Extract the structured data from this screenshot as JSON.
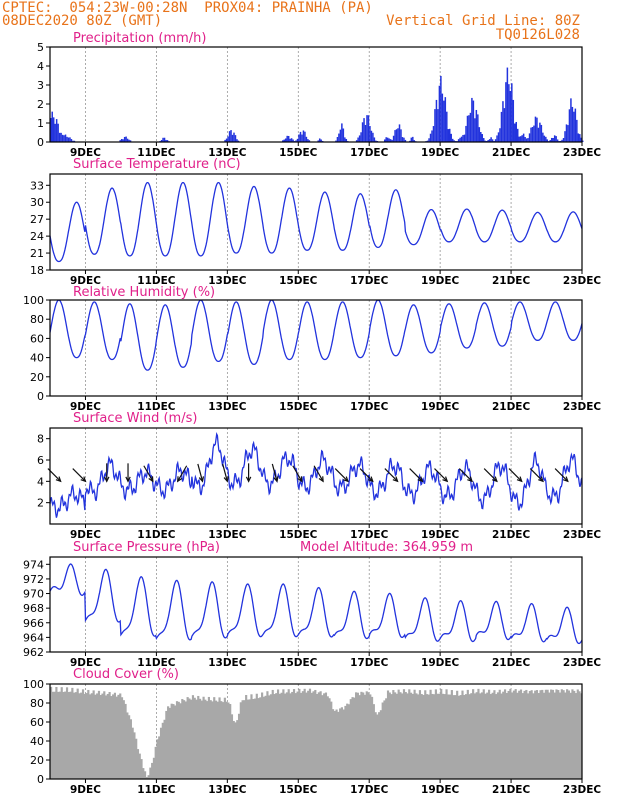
{
  "header": {
    "line1": "CPTEC:  054:23W-00:28N  PROX04: PRAINHA (PA)",
    "line2": "08DEC2020 80Z (GMT)",
    "grid_note": "Vertical Grid Line: 80Z",
    "model": "TQ0126L028"
  },
  "colors": {
    "header": "#e8731a",
    "title": "#e0208a",
    "series": "#2233dd",
    "bars": "#2233dd",
    "cloud": "#a8a8a8",
    "grid": "#888888"
  },
  "x_ticks": [
    "9DEC",
    "11DEC",
    "13DEC",
    "15DEC",
    "17DEC",
    "19DEC",
    "21DEC",
    "23DEC"
  ],
  "chart_data": [
    {
      "type": "bar",
      "title": "Precipitation (mm/h)",
      "ylim": [
        0,
        5
      ],
      "yticks": [
        "0",
        "1",
        "2",
        "3",
        "4",
        "5"
      ],
      "xlim_days": [
        0,
        15
      ],
      "events": [
        {
          "day": 0.05,
          "amp": 1.6,
          "w": 0.35
        },
        {
          "day": 0.4,
          "amp": 0.4,
          "w": 0.3
        },
        {
          "day": 2.1,
          "amp": 0.3,
          "w": 0.2
        },
        {
          "day": 3.2,
          "amp": 0.25,
          "w": 0.15
        },
        {
          "day": 5.1,
          "amp": 0.7,
          "w": 0.2
        },
        {
          "day": 6.7,
          "amp": 0.35,
          "w": 0.2
        },
        {
          "day": 7.1,
          "amp": 0.7,
          "w": 0.2
        },
        {
          "day": 7.6,
          "amp": 0.2,
          "w": 0.1
        },
        {
          "day": 8.2,
          "amp": 1.0,
          "w": 0.15
        },
        {
          "day": 8.9,
          "amp": 1.6,
          "w": 0.25
        },
        {
          "day": 9.5,
          "amp": 0.3,
          "w": 0.15
        },
        {
          "day": 9.8,
          "amp": 1.0,
          "w": 0.2
        },
        {
          "day": 10.2,
          "amp": 0.3,
          "w": 0.1
        },
        {
          "day": 11.0,
          "amp": 3.5,
          "w": 0.3
        },
        {
          "day": 11.6,
          "amp": 0.4,
          "w": 0.15
        },
        {
          "day": 11.9,
          "amp": 2.4,
          "w": 0.3
        },
        {
          "day": 12.4,
          "amp": 0.3,
          "w": 0.1
        },
        {
          "day": 12.9,
          "amp": 4.0,
          "w": 0.3
        },
        {
          "day": 13.3,
          "amp": 0.5,
          "w": 0.15
        },
        {
          "day": 13.7,
          "amp": 1.4,
          "w": 0.3
        },
        {
          "day": 14.2,
          "amp": 0.4,
          "w": 0.15
        },
        {
          "day": 14.7,
          "amp": 2.4,
          "w": 0.25
        }
      ]
    },
    {
      "type": "line",
      "title": "Surface Temperature (nC)",
      "ylim": [
        18,
        35
      ],
      "yticks": [
        "18",
        "21",
        "24",
        "27",
        "30",
        "33"
      ],
      "xlim_days": [
        0,
        15
      ],
      "daily_max": [
        30,
        32.5,
        33.5,
        33.5,
        33.5,
        32.8,
        32.5,
        31.8,
        31.5,
        32.2,
        28.7,
        28.8,
        28.6,
        28.2,
        28.3,
        29
      ],
      "daily_min": [
        19.5,
        20.8,
        20.5,
        20.5,
        20.5,
        21,
        21,
        21.5,
        21.5,
        22,
        22.5,
        23,
        23,
        23,
        23,
        23.5
      ]
    },
    {
      "type": "line",
      "title": "Relative Humidity (%)",
      "ylim": [
        0,
        100
      ],
      "yticks": [
        "0",
        "20",
        "40",
        "60",
        "80",
        "100"
      ],
      "xlim_days": [
        0,
        15
      ],
      "daily_max": [
        100,
        98,
        96,
        95,
        100,
        98,
        100,
        98,
        98,
        100,
        95,
        96,
        97,
        98,
        98,
        97
      ],
      "daily_min": [
        40,
        38,
        27,
        30,
        36,
        33,
        38,
        38,
        40,
        42,
        45,
        50,
        52,
        58,
        58,
        52
      ]
    },
    {
      "type": "line",
      "title": "Surface Wind (m/s)",
      "ylim": [
        0,
        9
      ],
      "yticks": [
        "2",
        "4",
        "6",
        "8"
      ],
      "xlim_days": [
        0,
        15
      ],
      "daily_max": [
        2.8,
        5.5,
        4.8,
        5.0,
        7.5,
        7.0,
        6.2,
        6.0,
        5.5,
        5.5,
        5.2,
        5.2,
        5.5,
        5.8,
        6.0,
        4.5
      ],
      "daily_min": [
        1.5,
        3.0,
        3.2,
        3.2,
        3.5,
        3.8,
        3.8,
        3.5,
        3.4,
        3.0,
        2.8,
        2.6,
        2.3,
        2.0,
        2.5,
        2.8
      ],
      "vectors": [
        {
          "day": 0.3,
          "speed": 3.5,
          "dir": 225
        },
        {
          "day": 1.0,
          "speed": 3.5,
          "dir": 225
        },
        {
          "day": 1.6,
          "speed": 3.5,
          "dir": 180
        },
        {
          "day": 2.2,
          "speed": 3.5,
          "dir": 180
        },
        {
          "day": 2.9,
          "speed": 3.5,
          "dir": 210
        },
        {
          "day": 3.6,
          "speed": 3.5,
          "dir": 150
        },
        {
          "day": 4.3,
          "speed": 3.5,
          "dir": 195
        },
        {
          "day": 5.0,
          "speed": 3.5,
          "dir": 195
        },
        {
          "day": 5.6,
          "speed": 3.5,
          "dir": 180
        },
        {
          "day": 6.4,
          "speed": 3.5,
          "dir": 195
        },
        {
          "day": 7.1,
          "speed": 3.5,
          "dir": 210
        },
        {
          "day": 7.7,
          "speed": 3.5,
          "dir": 210
        },
        {
          "day": 8.4,
          "speed": 3.5,
          "dir": 225
        },
        {
          "day": 9.1,
          "speed": 3.5,
          "dir": 225
        },
        {
          "day": 9.8,
          "speed": 3.5,
          "dir": 225
        },
        {
          "day": 10.5,
          "speed": 3.5,
          "dir": 225
        },
        {
          "day": 11.2,
          "speed": 3.5,
          "dir": 225
        },
        {
          "day": 11.9,
          "speed": 3.5,
          "dir": 225
        },
        {
          "day": 12.6,
          "speed": 3.5,
          "dir": 225
        },
        {
          "day": 13.3,
          "speed": 3.5,
          "dir": 225
        },
        {
          "day": 13.9,
          "speed": 3.5,
          "dir": 225
        },
        {
          "day": 14.6,
          "speed": 3.5,
          "dir": 225
        }
      ]
    },
    {
      "type": "line",
      "title": "Surface Pressure (hPa)",
      "subtitle": "Model Altitude: 364.959 m",
      "ylim": [
        962,
        975
      ],
      "yticks": [
        "962",
        "964",
        "966",
        "968",
        "970",
        "972",
        "974"
      ],
      "xlim_days": [
        0,
        15
      ],
      "daily_max": [
        973.2,
        972.5,
        971.5,
        971,
        970.8,
        970.5,
        970.5,
        970,
        969.5,
        969.2,
        968.6,
        968.2,
        968.1,
        967.8,
        967.3,
        967
      ],
      "daily_min": [
        970,
        966,
        964,
        963.5,
        963.8,
        964,
        964,
        964,
        963.8,
        964,
        963.5,
        963.5,
        963.8,
        963.5,
        963.3,
        962.2
      ]
    },
    {
      "type": "area",
      "title": "Cloud Cover (%)",
      "ylim": [
        0,
        100
      ],
      "yticks": [
        "0",
        "20",
        "40",
        "60",
        "80",
        "100"
      ],
      "xlim_days": [
        0,
        15
      ],
      "profile": [
        [
          0.0,
          97
        ],
        [
          0.5,
          97
        ],
        [
          1.0,
          95
        ],
        [
          1.5,
          94
        ],
        [
          2.0,
          92
        ],
        [
          2.3,
          60
        ],
        [
          2.5,
          30
        ],
        [
          2.7,
          5
        ],
        [
          2.85,
          20
        ],
        [
          3.0,
          45
        ],
        [
          3.3,
          80
        ],
        [
          3.6,
          85
        ],
        [
          4.0,
          90
        ],
        [
          4.3,
          88
        ],
        [
          4.7,
          87
        ],
        [
          5.0,
          86
        ],
        [
          5.2,
          60
        ],
        [
          5.4,
          88
        ],
        [
          5.8,
          90
        ],
        [
          6.3,
          95
        ],
        [
          6.8,
          96
        ],
        [
          7.3,
          97
        ],
        [
          7.8,
          93
        ],
        [
          8.0,
          75
        ],
        [
          8.3,
          80
        ],
        [
          8.6,
          94
        ],
        [
          9.0,
          95
        ],
        [
          9.2,
          70
        ],
        [
          9.5,
          95
        ],
        [
          10.0,
          96
        ],
        [
          10.5,
          94
        ],
        [
          11.0,
          95
        ],
        [
          11.5,
          93
        ],
        [
          12.0,
          96
        ],
        [
          12.5,
          95
        ],
        [
          13.0,
          97
        ],
        [
          13.5,
          96
        ],
        [
          14.0,
          97
        ],
        [
          14.5,
          97
        ],
        [
          15.0,
          96
        ]
      ]
    }
  ]
}
